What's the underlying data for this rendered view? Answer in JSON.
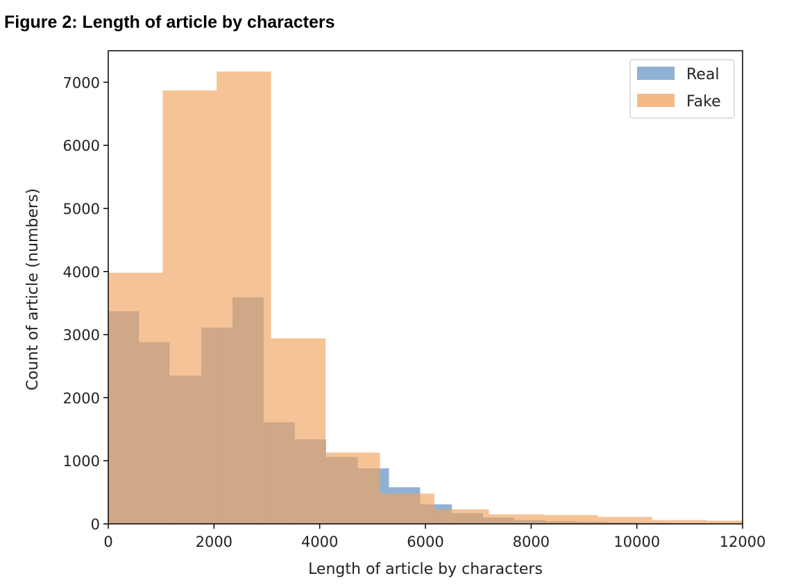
{
  "figure_title": "Figure 2: Length of article by characters",
  "chart_data": {
    "type": "bar",
    "subtype": "overlapping-histogram",
    "xlabel": "Length of article by characters",
    "ylabel": "Count of article (numbers)",
    "xlim": [
      0,
      12000
    ],
    "ylim": [
      0,
      7500
    ],
    "xticks": [
      0,
      2000,
      4000,
      6000,
      8000,
      10000,
      12000
    ],
    "yticks": [
      0,
      1000,
      2000,
      3000,
      4000,
      5000,
      6000,
      7000
    ],
    "grid": false,
    "legend_position": "top-right",
    "series": [
      {
        "name": "Real",
        "color": "#8fb1d4",
        "opacity": 1.0,
        "bins": [
          {
            "x0": 0,
            "x1": 580,
            "value": 3370
          },
          {
            "x0": 580,
            "x1": 1160,
            "value": 2880
          },
          {
            "x0": 1160,
            "x1": 1760,
            "value": 2350
          },
          {
            "x0": 1760,
            "x1": 2350,
            "value": 3110
          },
          {
            "x0": 2350,
            "x1": 2940,
            "value": 3590
          },
          {
            "x0": 2940,
            "x1": 3530,
            "value": 1610
          },
          {
            "x0": 3530,
            "x1": 4120,
            "value": 1340
          },
          {
            "x0": 4120,
            "x1": 4720,
            "value": 1060
          },
          {
            "x0": 4720,
            "x1": 5310,
            "value": 880
          },
          {
            "x0": 5310,
            "x1": 5900,
            "value": 580
          },
          {
            "x0": 5900,
            "x1": 6500,
            "value": 310
          },
          {
            "x0": 6500,
            "x1": 7090,
            "value": 170
          },
          {
            "x0": 7090,
            "x1": 7680,
            "value": 100
          },
          {
            "x0": 7680,
            "x1": 8270,
            "value": 60
          },
          {
            "x0": 8270,
            "x1": 8870,
            "value": 40
          },
          {
            "x0": 8870,
            "x1": 9460,
            "value": 30
          },
          {
            "x0": 9460,
            "x1": 10050,
            "value": 20
          },
          {
            "x0": 10050,
            "x1": 10650,
            "value": 15
          },
          {
            "x0": 10650,
            "x1": 11240,
            "value": 10
          },
          {
            "x0": 11240,
            "x1": 12000,
            "value": 5
          }
        ]
      },
      {
        "name": "Fake",
        "color": "#f0a35e",
        "opacity": 0.65,
        "bins": [
          {
            "x0": 0,
            "x1": 1030,
            "value": 3980
          },
          {
            "x0": 1030,
            "x1": 2050,
            "value": 6870
          },
          {
            "x0": 2050,
            "x1": 3080,
            "value": 7170
          },
          {
            "x0": 3080,
            "x1": 4110,
            "value": 2940
          },
          {
            "x0": 4110,
            "x1": 5140,
            "value": 1130
          },
          {
            "x0": 5140,
            "x1": 6170,
            "value": 480
          },
          {
            "x0": 6170,
            "x1": 7200,
            "value": 230
          },
          {
            "x0": 7200,
            "x1": 8230,
            "value": 150
          },
          {
            "x0": 8230,
            "x1": 9260,
            "value": 140
          },
          {
            "x0": 9260,
            "x1": 10290,
            "value": 110
          },
          {
            "x0": 10290,
            "x1": 11320,
            "value": 60
          },
          {
            "x0": 11320,
            "x1": 12000,
            "value": 50
          }
        ]
      }
    ]
  }
}
